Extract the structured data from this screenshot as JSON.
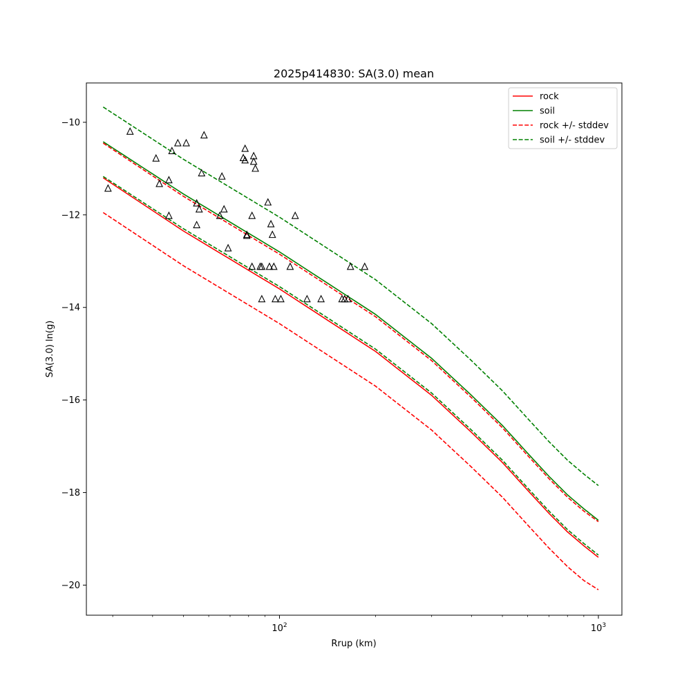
{
  "chart_data": {
    "type": "line",
    "title": "2025p414830: SA(3.0) mean",
    "xlabel": "Rrup (km)",
    "ylabel": "SA(3.0) ln(g)",
    "xscale": "log",
    "xlim": [
      24.8,
      1185
    ],
    "ylim": [
      -20.65,
      -9.15
    ],
    "x_ticks": [
      {
        "value": 100,
        "label": "10^2"
      },
      {
        "value": 1000,
        "label": "10^3"
      }
    ],
    "y_ticks": [
      {
        "value": -10,
        "label": "−10"
      },
      {
        "value": -12,
        "label": "−12"
      },
      {
        "value": -14,
        "label": "−14"
      },
      {
        "value": -16,
        "label": "−16"
      },
      {
        "value": -18,
        "label": "−18"
      },
      {
        "value": -20,
        "label": "−20"
      }
    ],
    "grid": false,
    "legend_position": "top-right",
    "series": [
      {
        "name": "rock",
        "color": "#ff0000",
        "dash": "solid",
        "x": [
          28,
          50,
          100,
          200,
          300,
          400,
          500,
          600,
          700,
          800,
          900,
          1000
        ],
        "y": [
          -11.2,
          -12.35,
          -13.6,
          -14.95,
          -15.9,
          -16.7,
          -17.35,
          -17.95,
          -18.45,
          -18.85,
          -19.15,
          -19.4
        ]
      },
      {
        "name": "soil",
        "color": "#008000",
        "dash": "solid",
        "x": [
          28,
          50,
          100,
          200,
          300,
          400,
          500,
          600,
          700,
          800,
          900,
          1000
        ],
        "y": [
          -10.42,
          -11.55,
          -12.8,
          -14.15,
          -15.1,
          -15.9,
          -16.55,
          -17.15,
          -17.65,
          -18.05,
          -18.35,
          -18.6
        ]
      },
      {
        "name": "rock +/- stddev",
        "color": "#ff0000",
        "dash": "dashed",
        "x": [
          28,
          50,
          100,
          200,
          300,
          400,
          500,
          600,
          700,
          800,
          900,
          1000
        ],
        "y": [
          -10.45,
          -11.6,
          -12.85,
          -14.2,
          -15.15,
          -15.95,
          -16.6,
          -17.2,
          -17.7,
          -18.1,
          -18.4,
          -18.63
        ]
      },
      {
        "name": "",
        "color": "#ff0000",
        "dash": "dashed",
        "x": [
          28,
          50,
          100,
          200,
          300,
          400,
          500,
          600,
          700,
          800,
          900,
          1000
        ],
        "y": [
          -11.95,
          -13.1,
          -14.35,
          -15.7,
          -16.65,
          -17.45,
          -18.1,
          -18.7,
          -19.2,
          -19.6,
          -19.9,
          -20.1
        ]
      },
      {
        "name": "soil +/- stddev",
        "color": "#008000",
        "dash": "dashed",
        "x": [
          28,
          50,
          100,
          200,
          300,
          400,
          500,
          600,
          700,
          800,
          900,
          1000
        ],
        "y": [
          -9.67,
          -10.8,
          -12.05,
          -13.4,
          -14.35,
          -15.15,
          -15.8,
          -16.4,
          -16.9,
          -17.3,
          -17.6,
          -17.85
        ]
      },
      {
        "name": "",
        "color": "#008000",
        "dash": "dashed",
        "x": [
          28,
          50,
          100,
          200,
          300,
          400,
          500,
          600,
          700,
          800,
          900,
          1000
        ],
        "y": [
          -11.17,
          -12.3,
          -13.55,
          -14.9,
          -15.85,
          -16.65,
          -17.3,
          -17.9,
          -18.4,
          -18.8,
          -19.1,
          -19.35
        ]
      }
    ],
    "observations": {
      "marker": "triangle",
      "color": "#000000",
      "points": [
        [
          29,
          -11.43
        ],
        [
          34,
          -10.2
        ],
        [
          41,
          -10.78
        ],
        [
          42,
          -11.33
        ],
        [
          45,
          -11.25
        ],
        [
          45,
          -12.02
        ],
        [
          46,
          -10.62
        ],
        [
          48,
          -10.45
        ],
        [
          51,
          -10.45
        ],
        [
          55,
          -11.75
        ],
        [
          55,
          -12.22
        ],
        [
          56,
          -11.88
        ],
        [
          57,
          -11.1
        ],
        [
          58,
          -10.28
        ],
        [
          65,
          -12.02
        ],
        [
          66,
          -11.17
        ],
        [
          67,
          -11.88
        ],
        [
          69,
          -12.72
        ],
        [
          77,
          -10.77
        ],
        [
          78,
          -10.57
        ],
        [
          78,
          -10.82
        ],
        [
          79,
          -12.45
        ],
        [
          79,
          -12.43
        ],
        [
          82,
          -12.02
        ],
        [
          82,
          -13.12
        ],
        [
          83,
          -10.73
        ],
        [
          83,
          -10.85
        ],
        [
          84,
          -11.0
        ],
        [
          87,
          -13.12
        ],
        [
          88,
          -13.12
        ],
        [
          88,
          -13.82
        ],
        [
          92,
          -11.73
        ],
        [
          93,
          -13.12
        ],
        [
          94,
          -12.2
        ],
        [
          95,
          -12.43
        ],
        [
          96,
          -13.12
        ],
        [
          97,
          -13.82
        ],
        [
          101,
          -13.82
        ],
        [
          108,
          -13.12
        ],
        [
          112,
          -12.02
        ],
        [
          122,
          -13.82
        ],
        [
          135,
          -13.82
        ],
        [
          157,
          -13.82
        ],
        [
          160,
          -13.82
        ],
        [
          164,
          -13.82
        ],
        [
          167,
          -13.12
        ],
        [
          185,
          -13.12
        ]
      ]
    }
  }
}
